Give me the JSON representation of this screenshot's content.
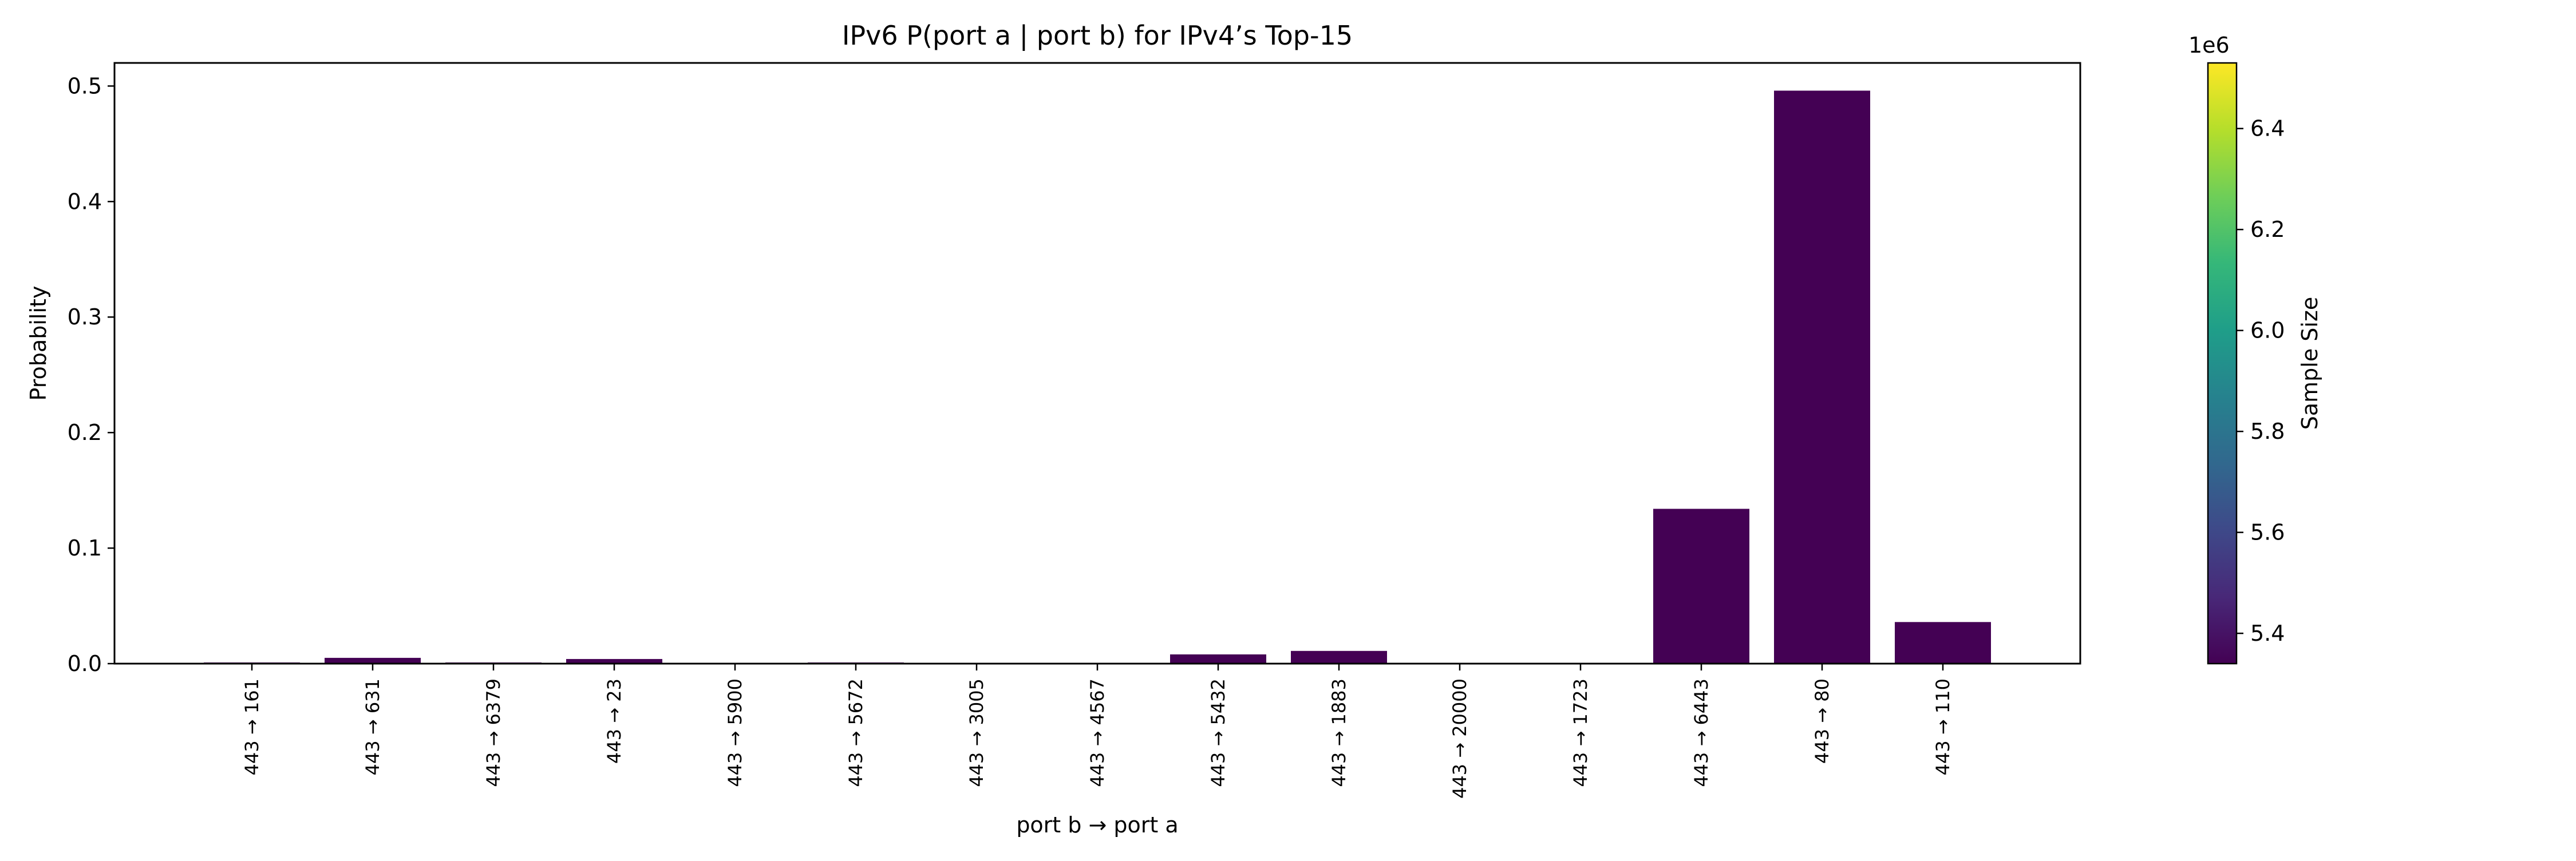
{
  "chart_data": {
    "type": "bar",
    "title": "IPv6 P(port a | port b) for IPv4’s Top-15",
    "xlabel": "port b → port a",
    "ylabel": "Probability",
    "ylim": [
      0,
      0.52
    ],
    "yticks": [
      "0.0",
      "0.1",
      "0.2",
      "0.3",
      "0.4",
      "0.5"
    ],
    "categories": [
      "443 → 161",
      "443 → 631",
      "443 → 6379",
      "443 → 23",
      "443 → 5900",
      "443 → 5672",
      "443 → 3005",
      "443 → 4567",
      "443 → 5432",
      "443 → 1883",
      "443 → 20000",
      "443 → 1723",
      "443 → 6443",
      "443 → 80",
      "443 → 110"
    ],
    "values": [
      0.001,
      0.005,
      0.001,
      0.004,
      0.0003,
      0.001,
      0.0003,
      0.0003,
      0.008,
      0.011,
      0.0003,
      0.0003,
      0.134,
      0.496,
      0.036
    ],
    "bar_color": "#440154",
    "grid": false,
    "colorbar": {
      "label": "Sample Size",
      "exponent": "1e6",
      "range": [
        5.34,
        6.53
      ],
      "ticks": [
        "5.4",
        "5.6",
        "5.8",
        "6.0",
        "6.2",
        "6.4"
      ],
      "colormap": "viridis",
      "colors": [
        "#440154",
        "#482878",
        "#3e4989",
        "#31688e",
        "#26828e",
        "#1f9e89",
        "#35b779",
        "#6ece58",
        "#b5de2b",
        "#fde725"
      ]
    }
  }
}
